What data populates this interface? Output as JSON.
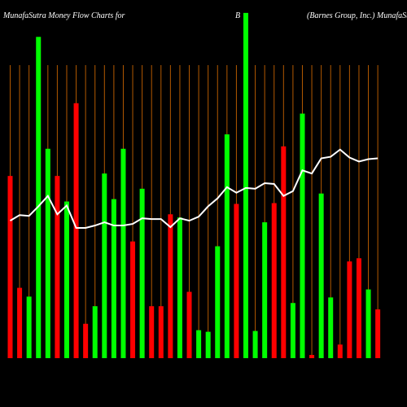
{
  "chart_data": {
    "type": "bar_line",
    "title": "MunafaSutra  Money Flow  Charts for",
    "symbol": "B",
    "subtitle": "(Barnes Group, Inc.) MunafaSutra.com",
    "ylim": [
      0,
      440
    ],
    "bars": {
      "values": [
        228,
        88,
        77,
        402,
        262,
        228,
        196,
        319,
        43,
        65,
        231,
        199,
        262,
        146,
        212,
        65,
        65,
        180,
        176,
        83,
        35,
        33,
        140,
        280,
        193,
        432,
        34,
        170,
        194,
        265,
        69,
        306,
        4,
        206,
        76,
        17,
        121,
        125,
        86,
        61
      ],
      "colors": [
        "#ff0000",
        "#ff0000",
        "#00ff00",
        "#00ff00",
        "#00ff00",
        "#ff0000",
        "#00ff00",
        "#ff0000",
        "#ff0000",
        "#00ff00",
        "#00ff00",
        "#00ff00",
        "#00ff00",
        "#ff0000",
        "#00ff00",
        "#ff0000",
        "#ff0000",
        "#ff0000",
        "#00ff00",
        "#ff0000",
        "#00ff00",
        "#00ff00",
        "#00ff00",
        "#00ff00",
        "#ff0000",
        "#00ff00",
        "#00ff00",
        "#00ff00",
        "#ff0000",
        "#ff0000",
        "#00ff00",
        "#00ff00",
        "#ff0000",
        "#00ff00",
        "#00ff00",
        "#ff0000",
        "#ff0000",
        "#ff0000",
        "#00ff00",
        "#ff0000"
      ]
    },
    "line": {
      "color": "#ffffff",
      "values": [
        172,
        179,
        178,
        190,
        203,
        180,
        191,
        163,
        163,
        166,
        170,
        166,
        166,
        168,
        175,
        174,
        174,
        164,
        175,
        172,
        177,
        190,
        200,
        214,
        207,
        213,
        212,
        219,
        218,
        203,
        209,
        235,
        231,
        250,
        252,
        261,
        251,
        246,
        249,
        250
      ]
    }
  }
}
